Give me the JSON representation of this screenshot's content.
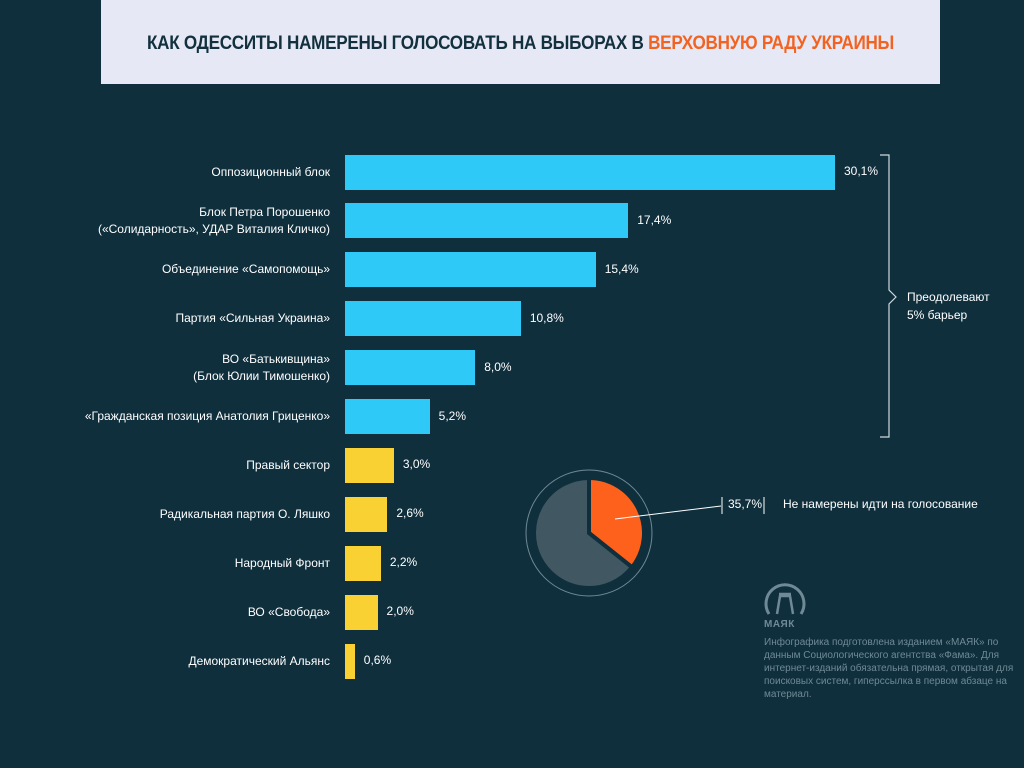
{
  "header": {
    "title_main": "КАК ОДЕССИТЫ НАМЕРЕНЫ ГОЛОСОВАТЬ НА ВЫБОРАХ В ",
    "title_highlight": "ВЕРХОВНУЮ РАДУ УКРАИНЫ"
  },
  "chart_data": [
    {
      "type": "bar",
      "orientation": "horizontal",
      "unit": "%",
      "categories": [
        "Оппозиционный блок",
        "Блок Петра Порошенко\n(«Солидарность», УДАР Виталия Кличко)",
        "Объединение «Самопомощь»",
        "Партия «Сильная Украина»",
        "ВО «Батькивщина»\n(Блок Юлии Тимошенко)",
        "«Гражданская позиция Анатолия Гриценко»",
        "Правый сектор",
        "Радикальная партия О. Ляшко",
        "Народный Фронт",
        "ВО «Свобода»",
        "Демократический Альянс"
      ],
      "values": [
        30.1,
        17.4,
        15.4,
        10.8,
        8.0,
        5.2,
        3.0,
        2.6,
        2.2,
        2.0,
        0.6
      ],
      "value_labels": [
        "30,1%",
        "17,4%",
        "15,4%",
        "10,8%",
        "8,0%",
        "5,2%",
        "3,0%",
        "2,6%",
        "2,2%",
        "2,0%",
        "0,6%"
      ],
      "groups": [
        "pass",
        "pass",
        "pass",
        "pass",
        "pass",
        "pass",
        "fail",
        "fail",
        "fail",
        "fail",
        "fail"
      ],
      "colors": {
        "pass": "#2ec9f6",
        "fail": "#f9d132"
      },
      "annotation": "Преодолевают\n5% барьер"
    },
    {
      "type": "pie",
      "values": [
        35.7,
        64.3
      ],
      "labels": [
        "Не намерены идти на голосование",
        ""
      ],
      "value_label": "35,7%",
      "colors": [
        "#fd611c",
        "#415862"
      ]
    }
  ],
  "footer": {
    "logo": "МАЯК",
    "note": "Инфографика подготовлена изданием «МАЯК» по данным Социологического агентства «Фама». Для интернет-изданий обязательна прямая, открытая для поисковых систем, гиперссылка в первом абзаце на материал."
  }
}
